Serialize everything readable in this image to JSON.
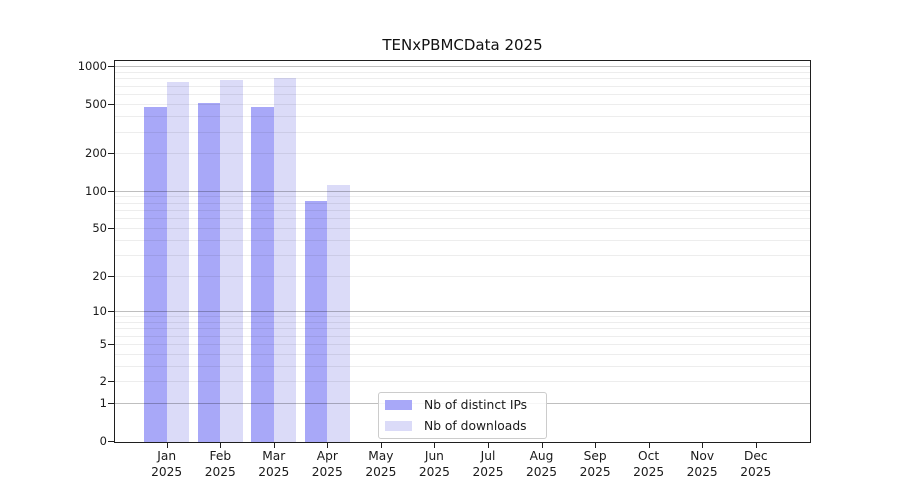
{
  "chart_data": {
    "type": "bar",
    "title": "TENxPBMCData 2025",
    "yscale": "log1p",
    "ylim": [
      0,
      1000
    ],
    "y_ticks": [
      0,
      1,
      2,
      5,
      10,
      20,
      50,
      100,
      200,
      500,
      1000
    ],
    "grid": "horizontal log gridlines, minor light + major dark at powers of 10",
    "legend_position": "inside lower-center of axes",
    "year": "2025",
    "months": [
      "Jan",
      "Feb",
      "Mar",
      "Apr",
      "May",
      "Jun",
      "Jul",
      "Aug",
      "Sep",
      "Oct",
      "Nov",
      "Dec"
    ],
    "series": [
      {
        "key": "distinct-ips",
        "name": "Nb of distinct IPs",
        "color": "#a8a8f8",
        "values": [
          470,
          508,
          475,
          83,
          null,
          null,
          null,
          null,
          null,
          null,
          null,
          null
        ]
      },
      {
        "key": "downloads",
        "name": "Nb of downloads",
        "color": "#dbdbf8",
        "values": [
          750,
          782,
          806,
          112,
          null,
          null,
          null,
          null,
          null,
          null,
          null,
          null
        ]
      }
    ]
  }
}
